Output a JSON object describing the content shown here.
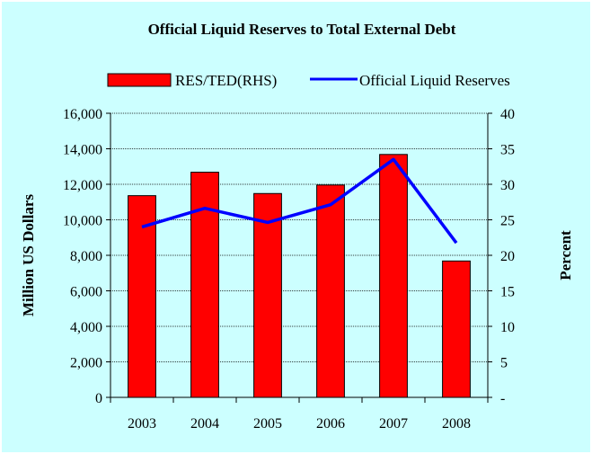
{
  "chart_data": {
    "type": "bar+line",
    "title": "Official Liquid Reserves to Total External Debt",
    "categories": [
      "2003",
      "2004",
      "2005",
      "2006",
      "2007",
      "2008"
    ],
    "series": [
      {
        "name": "RES/TED(RHS)",
        "type": "bar",
        "axis": "right",
        "values": [
          28.4,
          31.7,
          28.7,
          29.9,
          34.2,
          19.2
        ],
        "color": "#ff0000"
      },
      {
        "name": "Official Liquid Reserves",
        "type": "line",
        "axis": "left",
        "values": [
          9600,
          10650,
          9850,
          10850,
          13400,
          8700
        ],
        "color": "#0000ff"
      }
    ],
    "left_axis": {
      "label": "Million US Dollars",
      "range": [
        0,
        16000
      ],
      "ticks": [
        "0",
        "2,000",
        "4,000",
        "6,000",
        "8,000",
        "10,000",
        "12,000",
        "14,000",
        "16,000"
      ]
    },
    "right_axis": {
      "label": "Percent",
      "range": [
        0,
        40
      ],
      "ticks": [
        "-",
        "5",
        "10",
        "15",
        "20",
        "25",
        "30",
        "35",
        "40"
      ]
    },
    "grid": true,
    "legend_position": "top"
  }
}
